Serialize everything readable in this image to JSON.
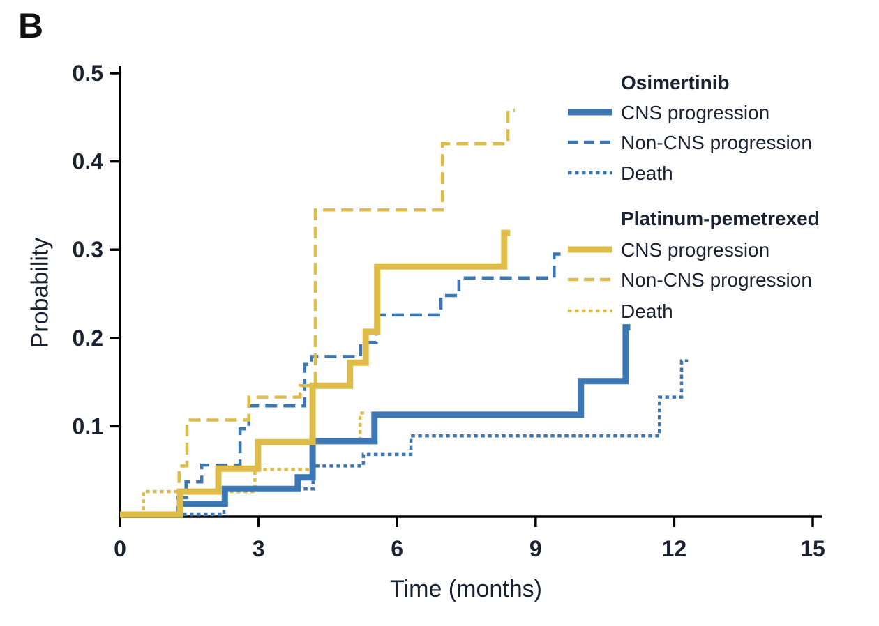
{
  "panel_label": "B",
  "colors": {
    "blue": "#3c77b3",
    "gold": "#debc4a",
    "axis": "#000000",
    "text": "#1a2130"
  },
  "axes": {
    "x": {
      "label": "Time (months)",
      "ticks": [
        0,
        3,
        6,
        9,
        12,
        15
      ],
      "range": [
        0,
        15.8
      ]
    },
    "y": {
      "label": "Probability",
      "ticks": [
        "0.1",
        "0.2",
        "0.3",
        "0.4",
        "0.5"
      ],
      "range": [
        0,
        0.51
      ]
    }
  },
  "legend": {
    "groups": [
      {
        "header": "Osimertinib",
        "items": [
          {
            "label": "CNS progression",
            "style": "solid",
            "color": "blue"
          },
          {
            "label": "Non-CNS progression",
            "style": "dashed",
            "color": "blue"
          },
          {
            "label": "Death",
            "style": "dotted",
            "color": "blue"
          }
        ]
      },
      {
        "header": "Platinum-pemetrexed",
        "items": [
          {
            "label": "CNS progression",
            "style": "solid",
            "color": "gold"
          },
          {
            "label": "Non-CNS progression",
            "style": "dashed",
            "color": "gold"
          },
          {
            "label": "Death",
            "style": "dotted",
            "color": "gold"
          }
        ]
      }
    ]
  },
  "chart_data": {
    "type": "line",
    "subtype": "cumulative-incidence-step",
    "title": "",
    "xlabel": "Time (months)",
    "ylabel": "Probability",
    "xlim": [
      0,
      15.8
    ],
    "ylim": [
      0,
      0.51
    ],
    "grid": false,
    "legend_position": "top-right",
    "step": true,
    "series": [
      {
        "id": "osi-cns",
        "group": "Osimertinib",
        "event": "CNS progression",
        "color": "blue",
        "style": "solid",
        "width": 9,
        "points": [
          [
            0,
            0
          ],
          [
            1.3,
            0.012
          ],
          [
            2.27,
            0.029
          ],
          [
            3.85,
            0.042
          ],
          [
            4.17,
            0.083
          ],
          [
            5.51,
            0.113
          ],
          [
            9.98,
            0.151
          ],
          [
            10.95,
            0.212
          ]
        ],
        "end_month": 11.05
      },
      {
        "id": "osi-noncns",
        "group": "Osimertinib",
        "event": "Non-CNS progression",
        "color": "blue",
        "style": "dashed",
        "width": 4.5,
        "points": [
          [
            0,
            0
          ],
          [
            1.25,
            0.019
          ],
          [
            1.43,
            0.037
          ],
          [
            1.77,
            0.056
          ],
          [
            2.6,
            0.097
          ],
          [
            2.79,
            0.123
          ],
          [
            4.0,
            0.17
          ],
          [
            4.15,
            0.179
          ],
          [
            5.21,
            0.195
          ],
          [
            5.55,
            0.226
          ],
          [
            6.95,
            0.248
          ],
          [
            7.34,
            0.268
          ],
          [
            9.4,
            0.295
          ]
        ],
        "end_month": 9.58
      },
      {
        "id": "osi-death",
        "group": "Osimertinib",
        "event": "Death",
        "color": "blue",
        "style": "dotted",
        "width": 4.5,
        "points": [
          [
            0,
            0
          ],
          [
            2.25,
            0.029
          ],
          [
            4.18,
            0.055
          ],
          [
            5.27,
            0.068
          ],
          [
            6.3,
            0.089
          ],
          [
            11.68,
            0.133
          ],
          [
            12.16,
            0.174
          ]
        ],
        "end_month": 12.3
      },
      {
        "id": "plat-cns",
        "group": "Platinum-pemetrexed",
        "event": "CNS progression",
        "color": "gold",
        "style": "solid",
        "width": 9,
        "points": [
          [
            0,
            0
          ],
          [
            1.3,
            0.026
          ],
          [
            2.13,
            0.052
          ],
          [
            2.99,
            0.082
          ],
          [
            4.17,
            0.146
          ],
          [
            4.98,
            0.172
          ],
          [
            5.32,
            0.207
          ],
          [
            5.57,
            0.281
          ],
          [
            8.32,
            0.319
          ]
        ],
        "end_month": 8.45
      },
      {
        "id": "plat-noncns",
        "group": "Platinum-pemetrexed",
        "event": "Non-CNS progression",
        "color": "gold",
        "style": "dashed",
        "width": 4.5,
        "points": [
          [
            0,
            0
          ],
          [
            1.28,
            0.055
          ],
          [
            1.45,
            0.107
          ],
          [
            2.79,
            0.133
          ],
          [
            3.9,
            0.146
          ],
          [
            4.23,
            0.345
          ],
          [
            6.98,
            0.42
          ],
          [
            8.4,
            0.458
          ]
        ],
        "end_month": 8.55
      },
      {
        "id": "plat-death",
        "group": "Platinum-pemetrexed",
        "event": "Death",
        "color": "gold",
        "style": "dotted",
        "width": 4.5,
        "points": [
          [
            0,
            0
          ],
          [
            0.51,
            0.026
          ],
          [
            2.92,
            0.051
          ],
          [
            4.18,
            0.082
          ],
          [
            5.2,
            0.115
          ]
        ],
        "end_month": 5.35
      }
    ]
  }
}
